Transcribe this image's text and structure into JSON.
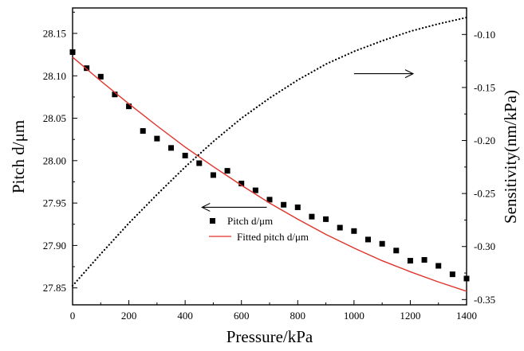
{
  "chart_data": {
    "type": "scatter",
    "x": {
      "label": "Pressure/kPa",
      "range": [
        0,
        1400
      ],
      "ticks": [
        0,
        200,
        400,
        600,
        800,
        1000,
        1200,
        1400
      ],
      "tick_labels": [
        "0",
        "200",
        "400",
        "600",
        "800",
        "1000",
        "1200",
        "1400"
      ]
    },
    "y_left": {
      "label": "Pitch d/μm",
      "range": [
        27.83,
        28.18
      ],
      "ticks": [
        27.85,
        27.9,
        27.95,
        28.0,
        28.05,
        28.1,
        28.15
      ],
      "tick_labels": [
        "27.85",
        "27.90",
        "27.95",
        "28.00",
        "28.05",
        "28.10",
        "28.15"
      ]
    },
    "y_right": {
      "label": "Sensitivity(nm/kPa)",
      "range": [
        -0.355,
        -0.075
      ],
      "ticks": [
        -0.35,
        -0.3,
        -0.25,
        -0.2,
        -0.15,
        -0.1
      ],
      "tick_labels": [
        "-0.35",
        "-0.30",
        "-0.25",
        "-0.20",
        "-0.15",
        "-0.10"
      ]
    },
    "series": [
      {
        "name": "Pitch d/μm",
        "kind": "scatter",
        "marker": "square",
        "color": "#000000",
        "axis": "left",
        "x": [
          0,
          50,
          100,
          150,
          200,
          250,
          300,
          350,
          400,
          450,
          500,
          550,
          600,
          650,
          700,
          750,
          800,
          850,
          900,
          950,
          1000,
          1050,
          1100,
          1150,
          1200,
          1250,
          1300,
          1350,
          1400
        ],
        "y": [
          28.128,
          28.109,
          28.099,
          28.078,
          28.064,
          28.035,
          28.026,
          28.015,
          28.006,
          27.997,
          27.983,
          27.988,
          27.973,
          27.965,
          27.954,
          27.948,
          27.945,
          27.934,
          27.931,
          27.921,
          27.917,
          27.907,
          27.902,
          27.894,
          27.882,
          27.883,
          27.876,
          27.866,
          27.861
        ]
      },
      {
        "name": "Fitted pitch d/μm",
        "kind": "line",
        "color": "#e0332b",
        "axis": "left",
        "x": [
          0,
          100,
          200,
          300,
          400,
          500,
          600,
          700,
          800,
          900,
          1000,
          1100,
          1200,
          1300,
          1400
        ],
        "y": [
          28.122,
          28.094,
          28.067,
          28.041,
          28.016,
          27.993,
          27.971,
          27.95,
          27.931,
          27.913,
          27.897,
          27.882,
          27.869,
          27.857,
          27.846
        ]
      },
      {
        "kind": "line",
        "style": "dotted",
        "color": "#000000",
        "axis": "right",
        "x": [
          0,
          100,
          200,
          300,
          400,
          500,
          600,
          700,
          800,
          900,
          1000,
          1100,
          1200,
          1300,
          1400
        ],
        "y": [
          -0.337,
          -0.307,
          -0.278,
          -0.251,
          -0.225,
          -0.201,
          -0.179,
          -0.16,
          -0.143,
          -0.128,
          -0.116,
          -0.106,
          -0.097,
          -0.09,
          -0.084
        ]
      }
    ],
    "arrows": [
      {
        "direction": "right",
        "x_from": 1000,
        "x_to": 1210,
        "y_right": -0.137
      },
      {
        "direction": "left",
        "x_from": 690,
        "x_to": 460,
        "y_left": 27.945
      }
    ],
    "legend": {
      "placement": "lower-center",
      "entries": [
        "Pitch d/μm",
        "Fitted pitch d/μm"
      ]
    },
    "grid": false
  }
}
